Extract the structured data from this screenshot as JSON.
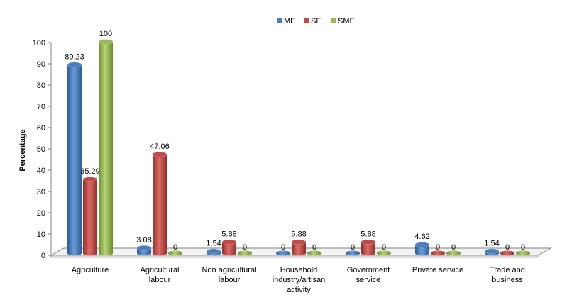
{
  "chart_data": {
    "type": "bar",
    "ylabel": "Percentage",
    "xlabel": "",
    "ylim": [
      0,
      100
    ],
    "yticks": [
      0,
      10,
      20,
      30,
      40,
      50,
      60,
      70,
      80,
      90,
      100
    ],
    "grid": false,
    "legend_position": "top",
    "categories": [
      [
        "Agriculture"
      ],
      [
        "Agricultural",
        "labour"
      ],
      [
        "Non agricultural",
        "labour"
      ],
      [
        "Household",
        "industry/artisan",
        "activity"
      ],
      [
        "Government",
        "service"
      ],
      [
        "Private service"
      ],
      [
        "Trade and",
        "business"
      ]
    ],
    "series": [
      {
        "name": "MF",
        "color": "#4a7ebb",
        "values": [
          89.23,
          3.08,
          1.54,
          0,
          0,
          4.62,
          1.54
        ],
        "labels": [
          "89.23",
          "3.08",
          "1.54",
          "0",
          "0",
          "4.62",
          "1.54"
        ]
      },
      {
        "name": "SF",
        "color": "#be4b48",
        "values": [
          35.29,
          47.06,
          5.88,
          5.88,
          5.88,
          0,
          0
        ],
        "labels": [
          "35.29",
          "47.06",
          "5.88",
          "5.88",
          "5.88",
          "0",
          "0"
        ]
      },
      {
        "name": "SMF",
        "color": "#98b954",
        "values": [
          100,
          0,
          0,
          0,
          0,
          0,
          0
        ],
        "labels": [
          "100",
          "0",
          "0",
          "0",
          "0",
          "0",
          "0"
        ]
      }
    ]
  }
}
